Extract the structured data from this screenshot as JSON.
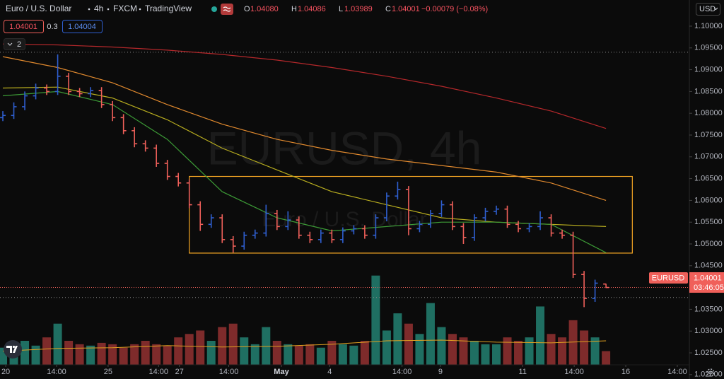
{
  "header": {
    "symbol": "Euro / U.S. Dollar",
    "interval": "4h",
    "source": "FXCM",
    "platform": "TradingView",
    "open_label": "O",
    "open": "1.04080",
    "high_label": "H",
    "high": "1.04086",
    "low_label": "L",
    "low": "1.03989",
    "close_label": "C",
    "close": "1.04001",
    "change": "−0.00079 (−0.08%)",
    "bid": "1.04001",
    "spread": "0.3",
    "ask": "1.04004",
    "indicators": "2",
    "currency": "USD"
  },
  "watermark": {
    "title": "EURUSD, 4h",
    "subtitle": "Euro / U.S. Dollar"
  },
  "price_label": {
    "symbol": "EURUSD",
    "price": "1.04001",
    "countdown": "03:46:05"
  },
  "chart_data": [
    {
      "type": "ohlc",
      "up_color": "#2f5fd0",
      "down_color": "#f0605a",
      "open": [
        1.079,
        1.0795,
        1.0815,
        1.084,
        1.0858,
        1.085,
        1.0885,
        1.085,
        1.0845,
        1.0852,
        1.082,
        1.079,
        1.076,
        1.073,
        1.072,
        1.0685,
        1.0655,
        1.064,
        1.059,
        1.0545,
        1.056,
        1.051,
        1.0495,
        1.052,
        1.0525,
        1.057,
        1.054,
        1.0555,
        1.052,
        1.051,
        1.0525,
        1.051,
        1.053,
        1.0535,
        1.052,
        1.056,
        1.061,
        1.0625,
        1.0535,
        1.0545,
        1.057,
        1.059,
        1.054,
        1.0515,
        1.056,
        1.0575,
        1.058,
        1.0545,
        1.0535,
        1.054,
        1.056,
        1.0525,
        1.052,
        1.043,
        1.0375,
        1.0408
      ],
      "high": [
        1.0805,
        1.0825,
        1.085,
        1.0868,
        1.0866,
        1.0935,
        1.0893,
        1.0858,
        1.086,
        1.086,
        1.0828,
        1.0798,
        1.0768,
        1.0738,
        1.0728,
        1.0693,
        1.0663,
        1.0648,
        1.0598,
        1.0568,
        1.0568,
        1.0518,
        1.0528,
        1.0533,
        1.059,
        1.0578,
        1.0575,
        1.0563,
        1.0528,
        1.0533,
        1.0533,
        1.0538,
        1.0543,
        1.0543,
        1.0568,
        1.0618,
        1.0643,
        1.0633,
        1.0553,
        1.0578,
        1.06,
        1.0598,
        1.0548,
        1.0568,
        1.0583,
        1.0588,
        1.0588,
        1.0553,
        1.0548,
        1.0575,
        1.0568,
        1.0533,
        1.0528,
        1.0438,
        1.0418,
        1.04086
      ],
      "low": [
        1.0782,
        1.0787,
        1.0807,
        1.0832,
        1.0842,
        1.0842,
        1.0842,
        1.0837,
        1.0837,
        1.0812,
        1.0782,
        1.0752,
        1.0722,
        1.0712,
        1.0677,
        1.0647,
        1.0632,
        1.0582,
        1.053,
        1.0537,
        1.0502,
        1.048,
        1.0487,
        1.0512,
        1.0517,
        1.0532,
        1.0532,
        1.0512,
        1.0502,
        1.0502,
        1.0502,
        1.0502,
        1.0522,
        1.0512,
        1.0512,
        1.0552,
        1.0602,
        1.052,
        1.0527,
        1.0537,
        1.0562,
        1.0532,
        1.05,
        1.0507,
        1.0552,
        1.0567,
        1.0537,
        1.0527,
        1.0527,
        1.0532,
        1.0517,
        1.0512,
        1.0422,
        1.0355,
        1.0367,
        1.03989
      ],
      "close": [
        1.0795,
        1.0815,
        1.084,
        1.0858,
        1.085,
        1.0885,
        1.085,
        1.0845,
        1.0852,
        1.082,
        1.079,
        1.076,
        1.073,
        1.072,
        1.0685,
        1.0655,
        1.064,
        1.059,
        1.0545,
        1.056,
        1.051,
        1.0495,
        1.052,
        1.0525,
        1.057,
        1.054,
        1.0555,
        1.052,
        1.051,
        1.0525,
        1.051,
        1.053,
        1.0535,
        1.052,
        1.056,
        1.061,
        1.0625,
        1.0535,
        1.0545,
        1.057,
        1.059,
        1.054,
        1.0515,
        1.056,
        1.0575,
        1.058,
        1.0545,
        1.0535,
        1.054,
        1.056,
        1.0525,
        1.052,
        1.043,
        1.0375,
        1.041,
        1.04001
      ],
      "xlim": [
        -0.26,
        62.6
      ],
      "ylim": [
        1.019,
        1.106
      ],
      "grid": false,
      "yticks": [
        {
          "value": 1.02,
          "label": "1.02000"
        },
        {
          "value": 1.025,
          "label": "1.02500"
        },
        {
          "value": 1.03,
          "label": "1.03000"
        },
        {
          "value": 1.035,
          "label": "1.03500"
        },
        {
          "value": 1.045,
          "label": "1.04500"
        },
        {
          "value": 1.05,
          "label": "1.05000"
        },
        {
          "value": 1.055,
          "label": "1.05500"
        },
        {
          "value": 1.06,
          "label": "1.06000"
        },
        {
          "value": 1.065,
          "label": "1.06500"
        },
        {
          "value": 1.07,
          "label": "1.07000"
        },
        {
          "value": 1.075,
          "label": "1.07500"
        },
        {
          "value": 1.08,
          "label": "1.08000"
        },
        {
          "value": 1.085,
          "label": "1.08500"
        },
        {
          "value": 1.09,
          "label": "1.09000"
        },
        {
          "value": 1.095,
          "label": "1.09500"
        },
        {
          "value": 1.1,
          "label": "1.10000"
        }
      ],
      "xticks": [
        {
          "value": 0.26,
          "label": "20"
        },
        {
          "value": 4.9,
          "label": "14:00"
        },
        {
          "value": 9.6,
          "label": "25"
        },
        {
          "value": 14.2,
          "label": "14:00"
        },
        {
          "value": 16.1,
          "label": "27"
        },
        {
          "value": 20.6,
          "label": "14:00"
        },
        {
          "value": 25.4,
          "label": "May"
        },
        {
          "value": 29.8,
          "label": "4"
        },
        {
          "value": 36.4,
          "label": "14:00"
        },
        {
          "value": 39.9,
          "label": "9"
        },
        {
          "value": 47.4,
          "label": "11"
        },
        {
          "value": 52.1,
          "label": "14:00"
        },
        {
          "value": 56.8,
          "label": "16"
        },
        {
          "value": 61.5,
          "label": "14:00"
        }
      ],
      "moving_averages": [
        {
          "color": "#b5282b",
          "x": [
            0,
            5,
            10,
            15,
            20,
            25,
            30,
            35,
            40,
            45,
            50,
            55
          ],
          "values": [
            1.0959,
            1.0957,
            1.0952,
            1.0945,
            1.0935,
            1.0922,
            1.0905,
            1.0885,
            1.0862,
            1.0835,
            1.0805,
            1.0765
          ]
        },
        {
          "color": "#e0892e",
          "x": [
            0,
            5,
            10,
            15,
            20,
            25,
            30,
            35,
            40,
            45,
            50,
            55
          ],
          "values": [
            1.093,
            1.0905,
            1.087,
            1.082,
            1.0775,
            1.074,
            1.0715,
            1.0695,
            1.068,
            1.0665,
            1.064,
            1.06
          ]
        },
        {
          "color": "#b8ad1f",
          "x": [
            0,
            5,
            10,
            15,
            20,
            25,
            30,
            35,
            40,
            45,
            50,
            55
          ],
          "values": [
            1.0858,
            1.086,
            1.0835,
            1.0785,
            1.072,
            1.067,
            1.062,
            1.059,
            1.056,
            1.055,
            1.0545,
            1.054
          ]
        },
        {
          "color": "#3c9a36",
          "x": [
            0,
            5,
            10,
            15,
            20,
            25,
            30,
            35,
            40,
            45,
            50,
            55
          ],
          "values": [
            1.084,
            1.085,
            1.082,
            1.074,
            1.062,
            1.056,
            1.053,
            1.054,
            1.055,
            1.055,
            1.0545,
            1.048
          ]
        }
      ],
      "rectangle": {
        "color": "#f5a623",
        "x": [
          17.0,
          57.4
        ],
        "y": [
          1.0655,
          1.0479
        ]
      },
      "levels": [
        1.094,
        1.0377
      ],
      "level_color": "#8a8a8a",
      "last_price_color": "#f0605a"
    },
    {
      "type": "bar",
      "up_color": "#1f6f62",
      "down_color": "#7e2b2b",
      "values": [
        25,
        30,
        35,
        28,
        40,
        60,
        35,
        30,
        28,
        32,
        30,
        25,
        30,
        35,
        30,
        28,
        40,
        45,
        50,
        35,
        55,
        60,
        40,
        30,
        55,
        35,
        30,
        28,
        30,
        25,
        35,
        30,
        28,
        35,
        130,
        50,
        75,
        60,
        45,
        90,
        55,
        45,
        40,
        35,
        30,
        30,
        40,
        35,
        40,
        85,
        45,
        40,
        65,
        50,
        40,
        20
      ],
      "ylim": [
        0,
        140
      ],
      "moving_average": {
        "color": "#e0a020",
        "x": [
          0,
          5,
          10,
          15,
          20,
          25,
          30,
          35,
          40,
          45,
          50,
          55
        ],
        "values": [
          20,
          24,
          25,
          28,
          26,
          27,
          30,
          35,
          36,
          33,
          32,
          35
        ]
      }
    }
  ]
}
